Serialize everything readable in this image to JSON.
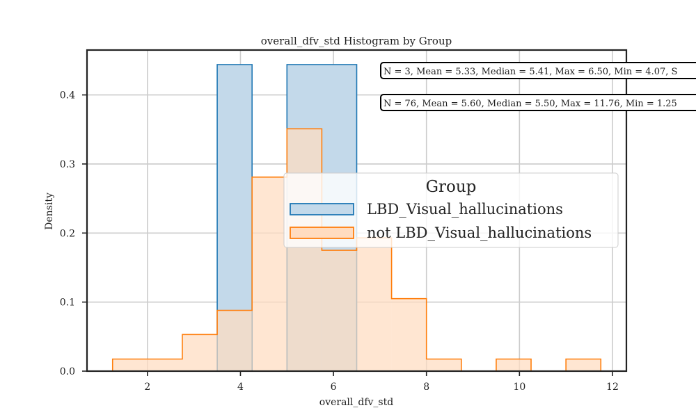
{
  "chart_data": {
    "type": "histogram",
    "title": "overall_dfv_std Histogram by Group",
    "xlabel": "overall_dfv_std",
    "ylabel": "Density",
    "xlim": [
      0.7,
      12.3
    ],
    "ylim": [
      0,
      0.465
    ],
    "x_ticks": [
      2,
      4,
      6,
      8,
      10,
      12
    ],
    "y_ticks": [
      0.0,
      0.1,
      0.2,
      0.3,
      0.4
    ],
    "y_tick_labels": [
      "0.0",
      "0.1",
      "0.2",
      "0.3",
      "0.4"
    ],
    "grid": true,
    "legend": {
      "title": "Group",
      "placement": "center-right"
    },
    "series": [
      {
        "name": "LBD_Visual_hallucinations",
        "color": "#1f77b4",
        "fill": "#c3d9ea",
        "bins": [
          {
            "x0": 3.5,
            "x1": 4.25,
            "density": 0.444
          },
          {
            "x0": 4.25,
            "x1": 5.0,
            "density": 0.0
          },
          {
            "x0": 5.0,
            "x1": 6.5,
            "density": 0.444
          }
        ],
        "stats": "N = 3, Mean = 5.33, Median = 5.41, Max = 6.50, Min = 4.07, S"
      },
      {
        "name": "not LBD_Visual_hallucinations",
        "color": "#ff7f0e",
        "fill": "#ffdcc0",
        "bins": [
          {
            "x0": 1.25,
            "x1": 2.75,
            "density": 0.0175
          },
          {
            "x0": 2.75,
            "x1": 3.5,
            "density": 0.053
          },
          {
            "x0": 3.5,
            "x1": 4.25,
            "density": 0.088
          },
          {
            "x0": 4.25,
            "x1": 5.0,
            "density": 0.281
          },
          {
            "x0": 5.0,
            "x1": 5.75,
            "density": 0.351
          },
          {
            "x0": 5.75,
            "x1": 6.5,
            "density": 0.175
          },
          {
            "x0": 6.5,
            "x1": 7.25,
            "density": 0.193
          },
          {
            "x0": 7.25,
            "x1": 8.0,
            "density": 0.105
          },
          {
            "x0": 8.0,
            "x1": 8.75,
            "density": 0.0175
          },
          {
            "x0": 8.75,
            "x1": 9.5,
            "density": 0.0
          },
          {
            "x0": 9.5,
            "x1": 10.25,
            "density": 0.0175
          },
          {
            "x0": 10.25,
            "x1": 11.0,
            "density": 0.0
          },
          {
            "x0": 11.0,
            "x1": 11.75,
            "density": 0.0175
          }
        ],
        "stats": "N = 76, Mean = 5.60, Median = 5.50, Max = 11.76, Min = 1.25"
      }
    ]
  }
}
